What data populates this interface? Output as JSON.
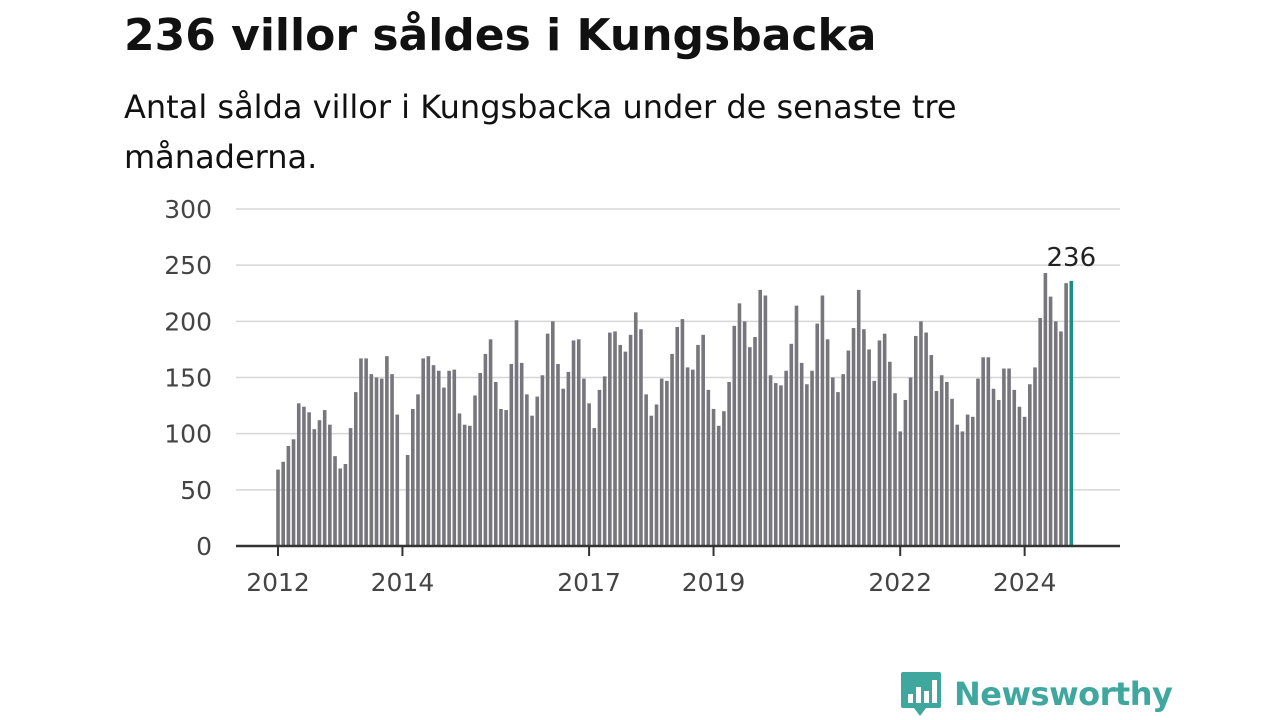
{
  "header": {
    "title": "236 villor såldes i Kungsbacka",
    "subtitle": "Antal sålda villor i Kungsbacka under de senaste tre månaderna."
  },
  "logo": {
    "text": "Newsworthy",
    "icon": "newsworthy-chart-icon"
  },
  "colors": {
    "bar": "#77767d",
    "highlight": "#1b8f85",
    "grid": "#d6d6d6",
    "axis": "#333333",
    "brand": "#3fa79e"
  },
  "chart_data": {
    "type": "bar",
    "title": "236 villor såldes i Kungsbacka",
    "subtitle": "Antal sålda villor i Kungsbacka under de senaste tre månaderna.",
    "xlabel": "",
    "ylabel": "",
    "ylim": [
      0,
      300
    ],
    "yticks": [
      0,
      50,
      100,
      150,
      200,
      250,
      300
    ],
    "xticks": [
      {
        "label": "2012",
        "month": "2012-01"
      },
      {
        "label": "2014",
        "month": "2014-01"
      },
      {
        "label": "2017",
        "month": "2017-01"
      },
      {
        "label": "2019",
        "month": "2019-01"
      },
      {
        "label": "2022",
        "month": "2022-01"
      },
      {
        "label": "2024",
        "month": "2024-01"
      }
    ],
    "grid": true,
    "start_month": "2012-01",
    "highlight_label": "236",
    "values": [
      68,
      75,
      89,
      95,
      127,
      124,
      119,
      104,
      112,
      121,
      108,
      80,
      69,
      73,
      105,
      137,
      167,
      167,
      153,
      150,
      149,
      169,
      153,
      117,
      null,
      81,
      122,
      135,
      167,
      169,
      161,
      156,
      141,
      156,
      157,
      118,
      108,
      107,
      134,
      154,
      171,
      184,
      146,
      122,
      121,
      162,
      201,
      163,
      135,
      116,
      133,
      152,
      189,
      200,
      162,
      140,
      155,
      183,
      184,
      149,
      127,
      105,
      139,
      151,
      190,
      191,
      179,
      173,
      188,
      208,
      193,
      135,
      116,
      126,
      149,
      147,
      171,
      195,
      202,
      159,
      157,
      179,
      188,
      139,
      122,
      107,
      120,
      146,
      196,
      216,
      200,
      177,
      186,
      228,
      223,
      152,
      145,
      143,
      156,
      180,
      214,
      163,
      144,
      156,
      198,
      223,
      184,
      150,
      137,
      153,
      174,
      194,
      228,
      193,
      175,
      147,
      183,
      189,
      164,
      136,
      102,
      130,
      150,
      187,
      200,
      190,
      170,
      138,
      152,
      146,
      131,
      108,
      102,
      117,
      115,
      149,
      168,
      168,
      140,
      130,
      158,
      158,
      139,
      124,
      115,
      144,
      159,
      203,
      243,
      222,
      200,
      191,
      234,
      236
    ]
  }
}
